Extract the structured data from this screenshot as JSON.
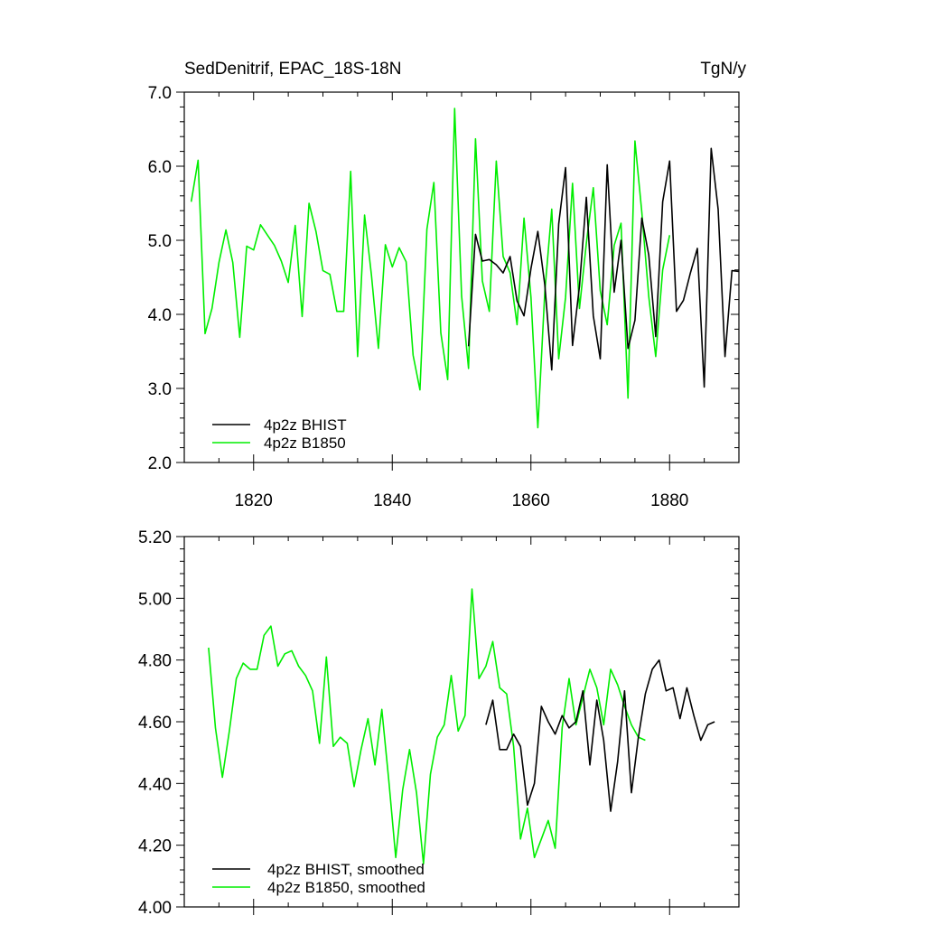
{
  "chart_data": [
    {
      "type": "line",
      "title": "SedDenitrif, EPAC_18S-18N",
      "units": "TgN/y",
      "xlim": [
        1810,
        1890
      ],
      "ylim": [
        2.0,
        7.0
      ],
      "x_ticks": [
        1820,
        1840,
        1860,
        1880
      ],
      "x_tick_labels": [
        "1820",
        "1840",
        "1860",
        "1880"
      ],
      "y_ticks": [
        2.0,
        3.0,
        4.0,
        5.0,
        6.0,
        7.0
      ],
      "y_tick_labels": [
        "2.0",
        "3.0",
        "4.0",
        "5.0",
        "6.0",
        "7.0"
      ],
      "legend_position": "bottom-left",
      "series": [
        {
          "name": "4p2z BHIST",
          "color": "#000000",
          "x_start": 1851,
          "values": [
            3.57,
            5.08,
            4.72,
            4.74,
            4.67,
            4.56,
            4.78,
            4.18,
            3.98,
            4.62,
            5.12,
            4.4,
            3.25,
            5.22,
            5.98,
            3.58,
            4.38,
            5.58,
            3.98,
            3.4,
            6.02,
            4.3,
            5.0,
            3.54,
            3.92,
            5.3,
            4.8,
            3.7,
            5.52,
            6.07,
            4.04,
            4.19,
            4.56,
            4.89,
            3.02,
            6.24,
            5.42,
            3.43,
            4.59,
            4.58
          ]
        },
        {
          "name": "4p2z B1850",
          "color": "#00ee00",
          "x_start": 1811,
          "values": [
            5.52,
            6.08,
            3.74,
            4.08,
            4.7,
            5.14,
            4.7,
            3.69,
            4.92,
            4.87,
            5.21,
            5.07,
            4.93,
            4.72,
            4.43,
            5.2,
            3.97,
            5.5,
            5.12,
            4.59,
            4.54,
            4.04,
            4.04,
            5.93,
            3.43,
            5.34,
            4.53,
            3.54,
            4.94,
            4.64,
            4.9,
            4.71,
            3.45,
            2.98,
            5.15,
            5.78,
            3.75,
            3.12,
            6.78,
            4.25,
            3.27,
            6.37,
            4.45,
            4.04,
            6.07,
            4.78,
            4.56,
            3.86,
            5.3,
            4.23,
            2.47,
            4.3,
            5.42,
            3.4,
            4.23,
            5.77,
            4.08,
            4.96,
            5.71,
            4.32,
            3.86,
            4.93,
            5.23,
            2.87,
            6.34,
            5.38,
            4.24,
            3.43,
            4.6,
            5.07
          ]
        }
      ]
    },
    {
      "type": "line",
      "title": "",
      "xlim": [
        1810,
        1890
      ],
      "ylim": [
        4.0,
        5.2
      ],
      "x_ticks": [
        1820,
        1840,
        1860,
        1880
      ],
      "y_ticks": [
        4.0,
        4.2,
        4.4,
        4.6,
        4.8,
        5.0,
        5.2
      ],
      "y_tick_labels": [
        "4.00",
        "4.20",
        "4.40",
        "4.60",
        "4.80",
        "5.00",
        "5.20"
      ],
      "legend_position": "bottom-left",
      "series": [
        {
          "name": "4p2z BHIST, smoothed",
          "color": "#000000",
          "x_start": 1853.5,
          "values": [
            4.59,
            4.67,
            4.51,
            4.51,
            4.56,
            4.52,
            4.33,
            4.4,
            4.65,
            4.6,
            4.56,
            4.62,
            4.58,
            4.6,
            4.7,
            4.46,
            4.67,
            4.54,
            4.31,
            4.47,
            4.7,
            4.37,
            4.55,
            4.69,
            4.77,
            4.8,
            4.7,
            4.71,
            4.61,
            4.71,
            4.62,
            4.54,
            4.59,
            4.6
          ]
        },
        {
          "name": "4p2z B1850, smoothed",
          "color": "#00ee00",
          "x_start": 1813.5,
          "values": [
            4.84,
            4.58,
            4.42,
            4.57,
            4.74,
            4.79,
            4.77,
            4.77,
            4.88,
            4.91,
            4.78,
            4.82,
            4.83,
            4.78,
            4.75,
            4.7,
            4.53,
            4.81,
            4.52,
            4.55,
            4.53,
            4.39,
            4.51,
            4.61,
            4.46,
            4.64,
            4.41,
            4.16,
            4.38,
            4.51,
            4.37,
            4.14,
            4.43,
            4.55,
            4.59,
            4.75,
            4.57,
            4.62,
            5.03,
            4.74,
            4.78,
            4.86,
            4.71,
            4.69,
            4.52,
            4.22,
            4.32,
            4.16,
            4.22,
            4.28,
            4.19,
            4.58,
            4.74,
            4.59,
            4.68,
            4.77,
            4.71,
            4.59,
            4.77,
            4.72,
            4.65,
            4.59,
            4.55,
            4.54
          ]
        }
      ]
    }
  ]
}
